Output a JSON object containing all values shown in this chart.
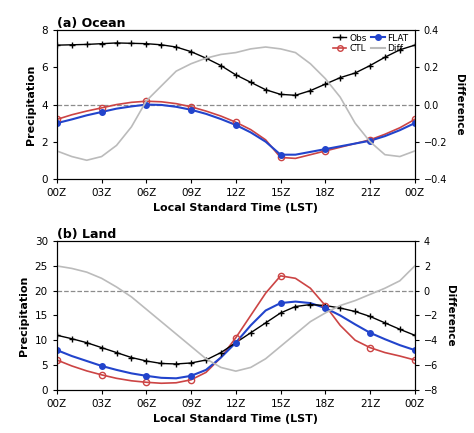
{
  "x_labels": [
    "00Z",
    "03Z",
    "06Z",
    "09Z",
    "12Z",
    "15Z",
    "18Z",
    "21Z",
    "00Z"
  ],
  "x_ticks": [
    0,
    3,
    6,
    9,
    12,
    15,
    18,
    21,
    24
  ],
  "ocean": {
    "title": "(a) Ocean",
    "ylim": [
      0,
      8
    ],
    "yticks": [
      0,
      2,
      4,
      6,
      8
    ],
    "ylabel": "Precipitation",
    "diff_ylim": [
      -0.4,
      0.4
    ],
    "diff_yticks": [
      -0.4,
      -0.2,
      0.0,
      0.2,
      0.4
    ],
    "diff_ylabel": "Difference",
    "dashed_y": 4.0,
    "obs_x": [
      0,
      1,
      2,
      3,
      4,
      5,
      6,
      7,
      8,
      9,
      10,
      11,
      12,
      13,
      14,
      15,
      16,
      17,
      18,
      19,
      20,
      21,
      22,
      23,
      24
    ],
    "obs_y": [
      7.2,
      7.22,
      7.24,
      7.28,
      7.32,
      7.3,
      7.28,
      7.22,
      7.1,
      6.85,
      6.5,
      6.1,
      5.6,
      5.2,
      4.8,
      4.55,
      4.5,
      4.75,
      5.1,
      5.45,
      5.7,
      6.1,
      6.55,
      6.95,
      7.2
    ],
    "ctl_x": [
      0,
      1,
      2,
      3,
      4,
      5,
      6,
      7,
      8,
      9,
      10,
      11,
      12,
      13,
      14,
      15,
      16,
      17,
      18,
      19,
      20,
      21,
      22,
      23,
      24
    ],
    "ctl_y": [
      3.2,
      3.45,
      3.65,
      3.82,
      4.0,
      4.12,
      4.18,
      4.15,
      4.05,
      3.88,
      3.65,
      3.38,
      3.05,
      2.65,
      2.1,
      1.15,
      1.1,
      1.3,
      1.5,
      1.7,
      1.9,
      2.1,
      2.4,
      2.75,
      3.2
    ],
    "flat_x": [
      0,
      1,
      2,
      3,
      4,
      5,
      6,
      7,
      8,
      9,
      10,
      11,
      12,
      13,
      14,
      15,
      16,
      17,
      18,
      19,
      20,
      21,
      22,
      23,
      24
    ],
    "flat_y": [
      3.0,
      3.2,
      3.42,
      3.6,
      3.78,
      3.9,
      4.0,
      3.98,
      3.88,
      3.72,
      3.5,
      3.22,
      2.9,
      2.5,
      2.0,
      1.3,
      1.3,
      1.45,
      1.6,
      1.75,
      1.9,
      2.05,
      2.3,
      2.62,
      3.0
    ],
    "diff_x": [
      0,
      1,
      2,
      3,
      4,
      5,
      6,
      7,
      8,
      9,
      10,
      11,
      12,
      13,
      14,
      15,
      16,
      17,
      18,
      19,
      20,
      21,
      22,
      23,
      24
    ],
    "diff_y": [
      -0.25,
      -0.28,
      -0.3,
      -0.28,
      -0.22,
      -0.12,
      0.02,
      0.1,
      0.18,
      0.22,
      0.25,
      0.27,
      0.28,
      0.3,
      0.31,
      0.3,
      0.28,
      0.22,
      0.14,
      0.04,
      -0.1,
      -0.2,
      -0.27,
      -0.28,
      -0.25
    ]
  },
  "land": {
    "title": "(b) Land",
    "ylim": [
      0,
      30
    ],
    "yticks": [
      0,
      5,
      10,
      15,
      20,
      25,
      30
    ],
    "ylabel": "Precipitation",
    "diff_ylim": [
      -8,
      4
    ],
    "diff_yticks": [
      -8,
      -6,
      -4,
      -2,
      0,
      2,
      4
    ],
    "diff_ylabel": "Difference",
    "dashed_y": 20.0,
    "obs_x": [
      0,
      1,
      2,
      3,
      4,
      5,
      6,
      7,
      8,
      9,
      10,
      11,
      12,
      13,
      14,
      15,
      16,
      17,
      18,
      19,
      20,
      21,
      22,
      23,
      24
    ],
    "obs_y": [
      11,
      10.3,
      9.5,
      8.5,
      7.5,
      6.5,
      5.8,
      5.3,
      5.2,
      5.4,
      6.0,
      7.5,
      9.5,
      11.5,
      13.5,
      15.5,
      16.8,
      17.2,
      17.0,
      16.5,
      15.8,
      14.8,
      13.5,
      12.2,
      11
    ],
    "ctl_x": [
      0,
      1,
      2,
      3,
      4,
      5,
      6,
      7,
      8,
      9,
      10,
      11,
      12,
      13,
      14,
      15,
      16,
      17,
      18,
      19,
      20,
      21,
      22,
      23,
      24
    ],
    "ctl_y": [
      6.0,
      4.8,
      3.8,
      3.0,
      2.3,
      1.8,
      1.5,
      1.3,
      1.4,
      2.0,
      3.5,
      6.5,
      10.5,
      15.0,
      19.5,
      23.0,
      22.5,
      20.5,
      17.0,
      13.0,
      10.0,
      8.5,
      7.5,
      6.8,
      6.0
    ],
    "flat_x": [
      0,
      1,
      2,
      3,
      4,
      5,
      6,
      7,
      8,
      9,
      10,
      11,
      12,
      13,
      14,
      15,
      16,
      17,
      18,
      19,
      20,
      21,
      22,
      23,
      24
    ],
    "flat_y": [
      8.0,
      6.8,
      5.8,
      4.8,
      4.0,
      3.3,
      2.8,
      2.4,
      2.3,
      2.8,
      4.0,
      6.5,
      9.5,
      13.0,
      16.0,
      17.5,
      17.8,
      17.5,
      16.5,
      15.0,
      13.2,
      11.5,
      10.2,
      9.0,
      8.0
    ],
    "diff_x": [
      0,
      1,
      2,
      3,
      4,
      5,
      6,
      7,
      8,
      9,
      10,
      11,
      12,
      13,
      14,
      15,
      16,
      17,
      18,
      19,
      20,
      21,
      22,
      23,
      24
    ],
    "diff_y": [
      2.0,
      1.8,
      1.5,
      1.0,
      0.3,
      -0.5,
      -1.5,
      -2.5,
      -3.5,
      -4.5,
      -5.5,
      -6.2,
      -6.5,
      -6.2,
      -5.5,
      -4.5,
      -3.5,
      -2.5,
      -1.8,
      -1.2,
      -0.8,
      -0.3,
      0.2,
      0.8,
      2.0
    ]
  },
  "obs_color": "#000000",
  "ctl_color": "#cc4444",
  "flat_color": "#2244cc",
  "diff_color": "#bbbbbb",
  "xlabel": "Local Standard Time (LST)"
}
